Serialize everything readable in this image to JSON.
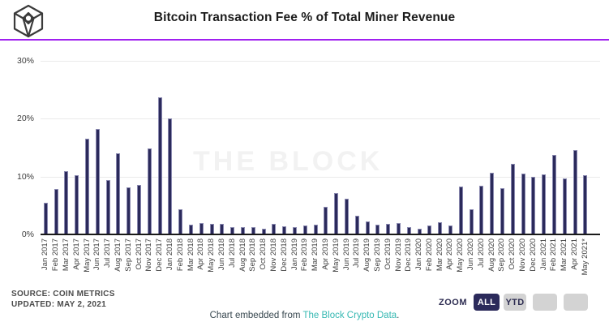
{
  "header": {
    "title": "Bitcoin Transaction Fee % of Total Miner Revenue",
    "logo": "the-block-cube-logo"
  },
  "watermark": "THE BLOCK",
  "chart_data": {
    "type": "bar",
    "title": "Bitcoin Transaction Fee % of Total Miner Revenue",
    "categories": [
      "Jan 2017",
      "Feb 2017",
      "Mar 2017",
      "Apr 2017",
      "May 2017",
      "Jun 2017",
      "Jul 2017",
      "Aug 2017",
      "Sep 2017",
      "Oct 2017",
      "Nov 2017",
      "Dec 2017",
      "Jan 2018",
      "Feb 2018",
      "Mar 2018",
      "Apr 2018",
      "May 2018",
      "Jun 2018",
      "Jul 2018",
      "Aug 2018",
      "Sep 2018",
      "Oct 2018",
      "Nov 2018",
      "Dec 2018",
      "Jan 2019",
      "Feb 2019",
      "Mar 2019",
      "Apr 2019",
      "May 2019",
      "Jun 2019",
      "Jul 2019",
      "Aug 2019",
      "Sep 2019",
      "Oct 2019",
      "Nov 2019",
      "Dec 2019",
      "Jan 2020",
      "Feb 2020",
      "Mar 2020",
      "Apr 2020",
      "May 2020",
      "Jun 2020",
      "Jul 2020",
      "Aug 2020",
      "Sep 2020",
      "Oct 2020",
      "Nov 2020",
      "Dec 2020",
      "Jan 2021",
      "Feb 2021",
      "Mar 2021",
      "Apr 2021",
      "May 2021*"
    ],
    "values": [
      5.5,
      7.8,
      10.9,
      10.3,
      16.5,
      18.3,
      9.4,
      14.0,
      8.2,
      8.5,
      14.9,
      23.7,
      20.1,
      4.3,
      1.7,
      2.0,
      1.8,
      1.8,
      1.2,
      1.2,
      1.3,
      1.0,
      1.8,
      1.4,
      1.2,
      1.5,
      1.7,
      4.8,
      7.1,
      6.2,
      3.3,
      2.3,
      1.7,
      1.8,
      2.0,
      1.2,
      1.0,
      1.5,
      2.1,
      1.6,
      8.3,
      4.3,
      8.4,
      10.7,
      8.0,
      12.2,
      10.5,
      9.9,
      10.4,
      13.7,
      9.7,
      14.6,
      10.3
    ],
    "xlabel": "",
    "ylabel": "",
    "ylim": [
      0,
      30
    ],
    "yticks": [
      {
        "value": 0,
        "label": "0%"
      },
      {
        "value": 10,
        "label": "10%"
      },
      {
        "value": 20,
        "label": "20%"
      },
      {
        "value": 30,
        "label": "30%"
      }
    ],
    "grid": true,
    "legend": false,
    "bar_color": "#2b2a5b",
    "bar_border_color": "#8a89b0"
  },
  "footer": {
    "source_line1": "SOURCE: COIN METRICS",
    "source_line2": "UPDATED: MAY 2, 2021",
    "embed_prefix": "Chart embedded from ",
    "embed_link": "The Block Crypto Data",
    "embed_suffix": ".",
    "zoom": {
      "label": "ZOOM",
      "buttons": [
        {
          "label": "ALL",
          "active": true
        },
        {
          "label": "YTD",
          "active": false
        },
        {
          "label": "",
          "active": false
        },
        {
          "label": "",
          "active": false
        }
      ]
    }
  },
  "colors": {
    "accent_purple": "#a020f0",
    "bar_navy": "#2b2a5b",
    "link_teal": "#35b8b2",
    "watermark_gray": "#f2f2f2"
  }
}
